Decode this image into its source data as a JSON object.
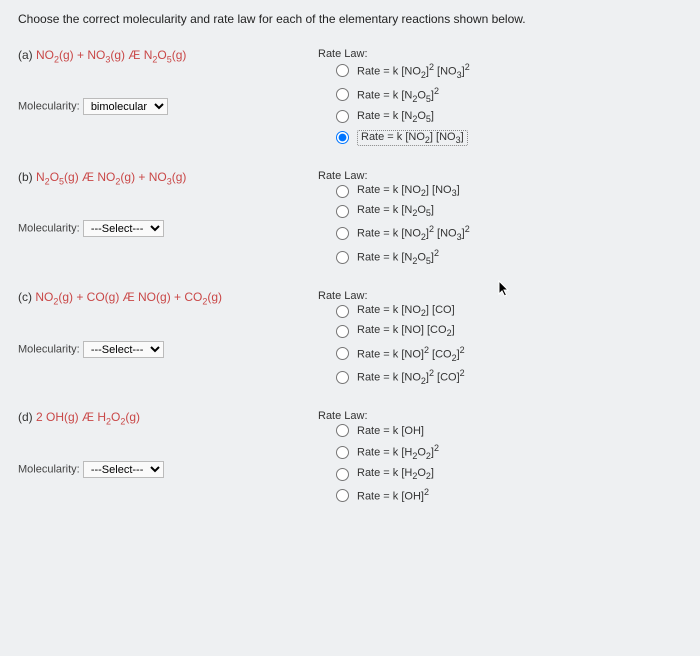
{
  "instruction": "Choose the correct molecularity and rate law for each of the elementary reactions shown below.",
  "parts": {
    "a": {
      "label": "(a) ",
      "reaction_html": "NO<sub>2</sub>(g) + NO<sub>3</sub>(g) Æ N<sub>2</sub>O<sub>5</sub>(g)",
      "molec_label": "Molecularity:",
      "molec_selected": "bimolecular",
      "molec_is_select": false,
      "rate_law_label": "Rate Law:",
      "options": [
        "Rate = k [NO<sub>2</sub>]<sup>2</sup> [NO<sub>3</sub>]<sup>2</sup>",
        "Rate = k [N<sub>2</sub>O<sub>5</sub>]<sup>2</sup>",
        "Rate = k [N<sub>2</sub>O<sub>5</sub>]",
        "Rate = k [NO<sub>2</sub>] [NO<sub>3</sub>]"
      ],
      "selected": 3
    },
    "b": {
      "label": "(b) ",
      "reaction_html": "N<sub>2</sub>O<sub>5</sub>(g) Æ NO<sub>2</sub>(g) + NO<sub>3</sub>(g)",
      "molec_label": "Molecularity:",
      "molec_selected": "---Select---",
      "molec_is_select": true,
      "rate_law_label": "Rate Law:",
      "options": [
        "Rate = k [NO<sub>2</sub>] [NO<sub>3</sub>]",
        "Rate = k [N<sub>2</sub>O<sub>5</sub>]",
        "Rate = k [NO<sub>2</sub>]<sup>2</sup> [NO<sub>3</sub>]<sup>2</sup>",
        "Rate = k [N<sub>2</sub>O<sub>5</sub>]<sup>2</sup>"
      ],
      "selected": -1
    },
    "c": {
      "label": "(c) ",
      "reaction_html": "NO<sub>2</sub>(g) + CO(g) Æ NO(g) + CO<sub>2</sub>(g)",
      "molec_label": "Molecularity:",
      "molec_selected": "---Select---",
      "molec_is_select": true,
      "rate_law_label": "Rate Law:",
      "options": [
        "Rate = k [NO<sub>2</sub>] [CO]",
        "Rate = k [NO] [CO<sub>2</sub>]",
        "Rate = k [NO]<sup>2</sup> [CO<sub>2</sub>]<sup>2</sup>",
        "Rate = k [NO<sub>2</sub>]<sup>2</sup> [CO]<sup>2</sup>"
      ],
      "selected": -1
    },
    "d": {
      "label": "(d) ",
      "reaction_html": "2 OH(g) Æ H<sub>2</sub>O<sub>2</sub>(g)",
      "molec_label": "Molecularity:",
      "molec_selected": "---Select---",
      "molec_is_select": true,
      "rate_law_label": "Rate Law:",
      "options": [
        "Rate = k [OH]",
        "Rate = k [H<sub>2</sub>O<sub>2</sub>]<sup>2</sup>",
        "Rate = k [H<sub>2</sub>O<sub>2</sub>]",
        "Rate = k [OH]<sup>2</sup>"
      ],
      "selected": -1
    }
  },
  "colors": {
    "background": "#eef0f2",
    "text": "#333333",
    "reaction": "#c94747"
  }
}
